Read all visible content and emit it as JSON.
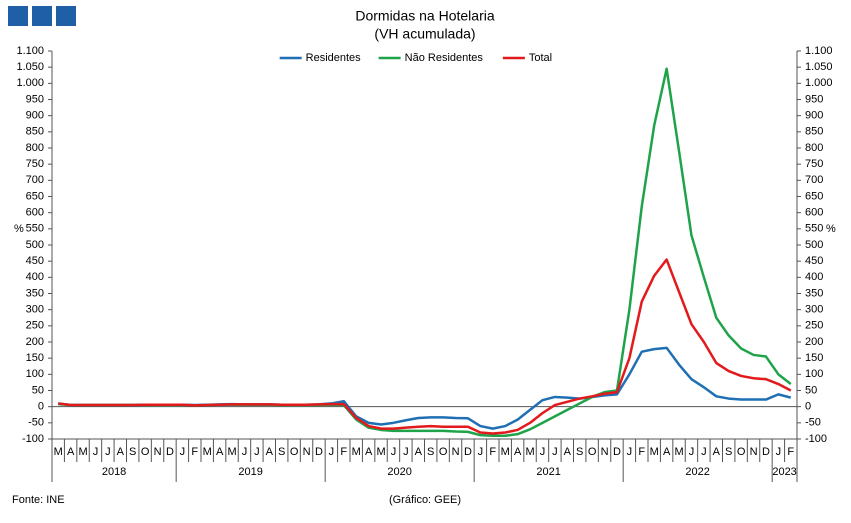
{
  "chart_data": {
    "type": "line",
    "title": "Dormidas na Hotelaria",
    "subtitle": "(VH acumulada)",
    "y_label": "%",
    "y2_label": "%",
    "source": "Fonte: INE",
    "credit": "(Gráfico: GEE)",
    "legend": "top",
    "category_groups": [
      {
        "label": "2018",
        "categories": [
          "M",
          "A",
          "M",
          "J",
          "J",
          "A",
          "S",
          "O",
          "N",
          "D"
        ]
      },
      {
        "label": "2019",
        "categories": [
          "J",
          "F",
          "M",
          "A",
          "M",
          "J",
          "J",
          "A",
          "S",
          "O",
          "N",
          "D"
        ]
      },
      {
        "label": "2020",
        "categories": [
          "J",
          "F",
          "M",
          "A",
          "M",
          "J",
          "J",
          "A",
          "S",
          "O",
          "N",
          "D"
        ]
      },
      {
        "label": "2021",
        "categories": [
          "J",
          "F",
          "M",
          "A",
          "M",
          "J",
          "J",
          "A",
          "S",
          "O",
          "N",
          "D"
        ]
      },
      {
        "label": "2022",
        "categories": [
          "J",
          "F",
          "M",
          "A",
          "M",
          "J",
          "J",
          "A",
          "S",
          "O",
          "N",
          "D"
        ]
      },
      {
        "label": "2023",
        "categories": [
          "J",
          "F"
        ]
      }
    ],
    "ylim": [
      -100,
      1100
    ],
    "yticks": [
      -100,
      -50,
      0,
      50,
      100,
      150,
      200,
      250,
      300,
      350,
      400,
      450,
      500,
      550,
      600,
      650,
      700,
      750,
      800,
      850,
      900,
      950,
      {
        "value": 1000,
        "label": "1.000"
      },
      {
        "value": 1050,
        "label": "1.050"
      },
      {
        "value": 1100,
        "label": "1.100"
      }
    ],
    "series": [
      {
        "name": "Residentes",
        "color": "#1f6fb4",
        "values": [
          10,
          5,
          5,
          5,
          5,
          5,
          5,
          6,
          6,
          6,
          6,
          5,
          6,
          7,
          8,
          7,
          7,
          7,
          6,
          6,
          6,
          7,
          10,
          17,
          -30,
          -50,
          -55,
          -50,
          -42,
          -35,
          -33,
          -33,
          -35,
          -36,
          -60,
          -68,
          -60,
          -40,
          -10,
          20,
          30,
          28,
          25,
          30,
          35,
          38,
          100,
          170,
          178,
          182,
          130,
          85,
          60,
          32,
          25,
          22,
          22,
          22,
          38,
          28
        ]
      },
      {
        "name": "Não Residentes",
        "color": "#1fa34a",
        "values": [
          8,
          5,
          5,
          5,
          5,
          5,
          5,
          5,
          5,
          5,
          5,
          4,
          5,
          6,
          6,
          6,
          6,
          6,
          5,
          5,
          5,
          5,
          6,
          5,
          -40,
          -65,
          -72,
          -75,
          -75,
          -75,
          -75,
          -75,
          -77,
          -78,
          -88,
          -90,
          -90,
          -85,
          -70,
          -50,
          -30,
          -10,
          10,
          30,
          45,
          50,
          300,
          620,
          870,
          1045,
          790,
          530,
          400,
          275,
          220,
          180,
          160,
          155,
          100,
          70
        ]
      },
      {
        "name": "Total",
        "color": "#e31a1c",
        "values": [
          10,
          5,
          5,
          5,
          5,
          5,
          5,
          6,
          6,
          6,
          6,
          4,
          5,
          6,
          7,
          7,
          7,
          7,
          6,
          6,
          6,
          7,
          8,
          8,
          -35,
          -60,
          -68,
          -68,
          -65,
          -62,
          -60,
          -62,
          -62,
          -62,
          -80,
          -83,
          -80,
          -72,
          -50,
          -20,
          5,
          15,
          25,
          32,
          40,
          45,
          150,
          325,
          405,
          455,
          355,
          255,
          200,
          135,
          110,
          95,
          88,
          85,
          70,
          50
        ]
      }
    ]
  }
}
